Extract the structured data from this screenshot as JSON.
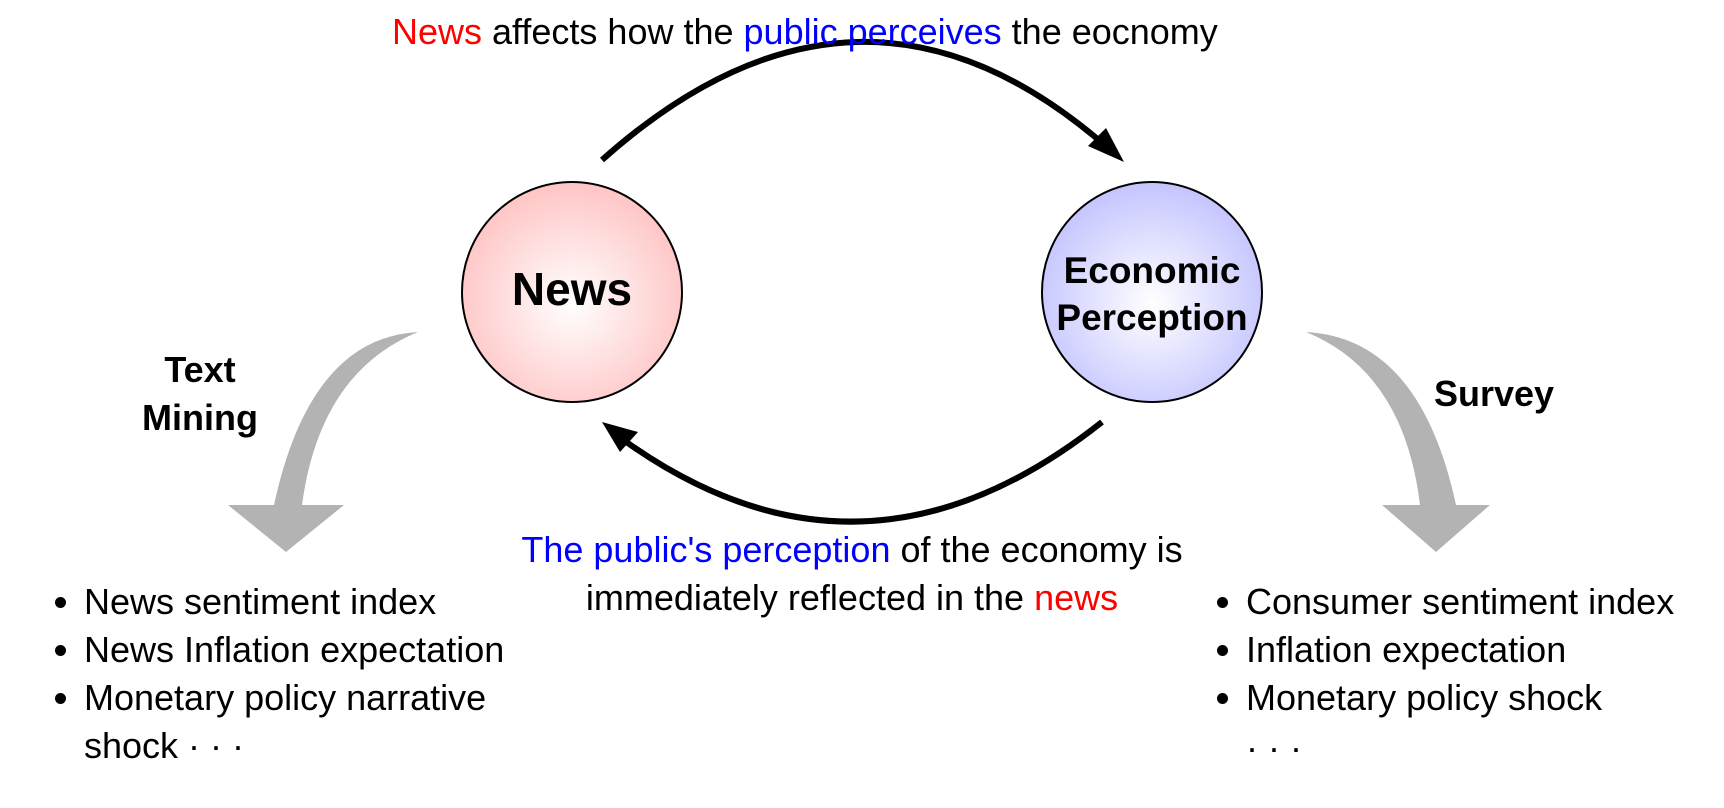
{
  "top_caption": {
    "part1": "News",
    "part2": " affects how the ",
    "part3": "public perceives",
    "part4": " the eocnomy"
  },
  "bottom_caption": {
    "part1": "The public's perception",
    "part2": " of the economy is",
    "part3": "immediately reflected in the ",
    "part4": "news"
  },
  "nodes": {
    "news": {
      "label": "News",
      "fill": "#ffcccc"
    },
    "perception": {
      "line1": "Economic",
      "line2": "Perception",
      "fill": "#ccccff"
    }
  },
  "left_branch": {
    "label_line1": "Text",
    "label_line2": "Mining",
    "items": [
      "News sentiment index",
      "News Inflation expectation",
      "Monetary policy narrative shock · · ·"
    ]
  },
  "right_branch": {
    "label": "Survey",
    "items": [
      "Consumer sentiment index",
      "Inflation expectation",
      "Monetary policy shock"
    ],
    "ellipsis": "· · ·"
  },
  "colors": {
    "accent_red": "#ff0000",
    "accent_blue": "#0000ff",
    "branch_arrow": "#b3b3b3"
  }
}
